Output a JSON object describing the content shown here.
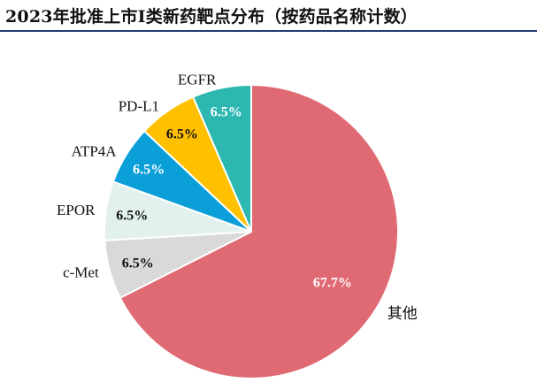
{
  "chart_data": {
    "type": "pie",
    "title": "2023年批准上市I类新药靶点分布（按药品名称计数）",
    "slices": [
      {
        "label": "其他",
        "value": 67.7,
        "display": "67.7%",
        "color": "#e06a73",
        "pct_color": "#ffffff"
      },
      {
        "label": "c-Met",
        "value": 6.5,
        "display": "6.5%",
        "color": "#d9d9d9",
        "pct_color": "#111111"
      },
      {
        "label": "EPOR",
        "value": 6.5,
        "display": "6.5%",
        "color": "#e2f0ee",
        "pct_color": "#111111"
      },
      {
        "label": "ATP4A",
        "value": 6.5,
        "display": "6.5%",
        "color": "#0a9fd8",
        "pct_color": "#ffffff"
      },
      {
        "label": "PD-L1",
        "value": 6.5,
        "display": "6.5%",
        "color": "#ffc000",
        "pct_color": "#111111"
      },
      {
        "label": "EGFR",
        "value": 6.5,
        "display": "6.5%",
        "color": "#2db7b1",
        "pct_color": "#ffffff"
      }
    ],
    "start": "12 o'clock",
    "direction": "clockwise",
    "legend": "none"
  }
}
